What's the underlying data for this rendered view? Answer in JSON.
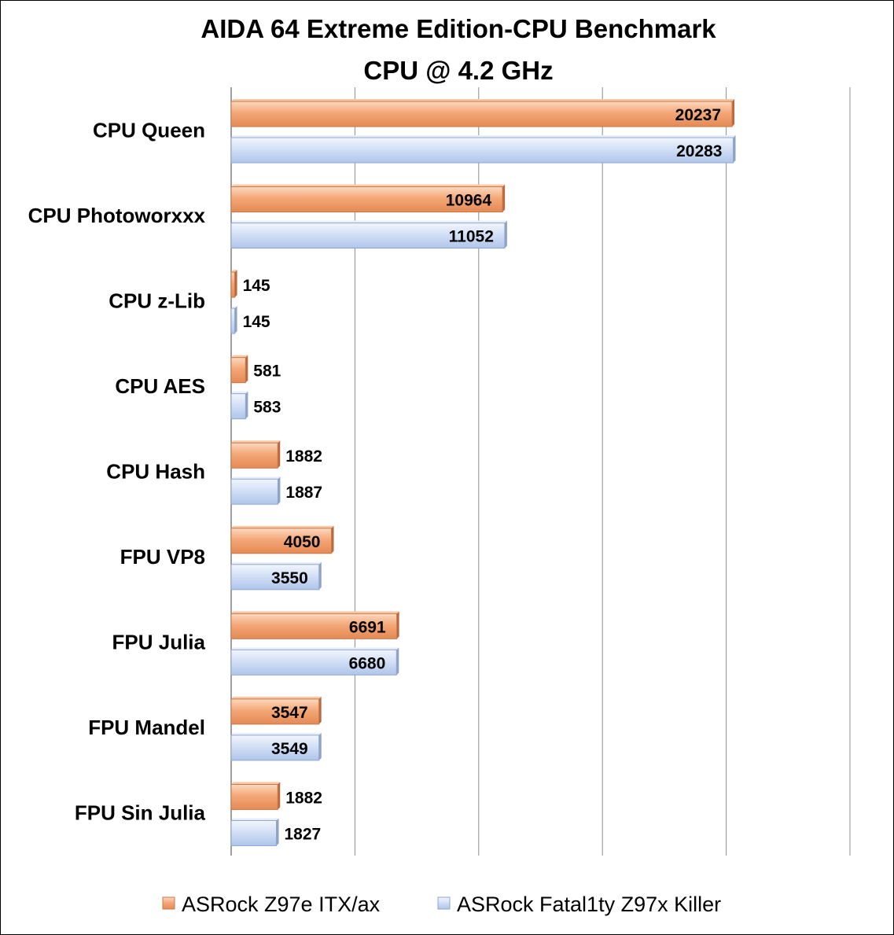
{
  "chart_data": {
    "type": "bar",
    "orientation": "horizontal",
    "title": "AIDA 64 Extreme Edition-CPU Benchmark",
    "subtitle": "CPU @ 4.2 GHz",
    "categories": [
      "CPU Queen",
      "CPU Photoworxxx",
      "CPU z-Lib",
      "CPU AES",
      "CPU Hash",
      "FPU VP8",
      "FPU Julia",
      "FPU Mandel",
      "FPU Sin Julia"
    ],
    "series": [
      {
        "name": "ASRock Z97e ITX/ax",
        "color": "#F0A070",
        "values": [
          20237,
          10964,
          145,
          581,
          1882,
          4050,
          6691,
          3547,
          1882
        ]
      },
      {
        "name": "ASRock Fatal1ty Z97x Killer",
        "color": "#C8D8F4",
        "values": [
          20283,
          11052,
          145,
          583,
          1887,
          3550,
          6680,
          3549,
          1827
        ]
      }
    ],
    "xlim": [
      0,
      25000
    ],
    "grid": "vertical",
    "legend": "bottom",
    "data_labels": true
  }
}
